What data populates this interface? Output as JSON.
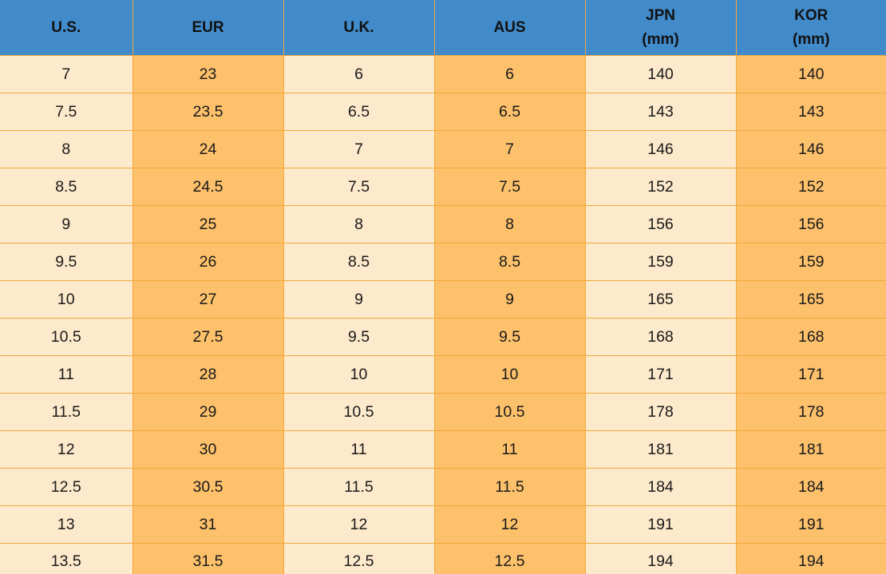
{
  "colors": {
    "header_background": "#418bcb",
    "light_cell": "#fde9cb",
    "dark_cell": "#fdc06b",
    "grid_line": "#f2a93b"
  },
  "table": {
    "headers": [
      "U.S.",
      "EUR",
      "U.K.",
      "AUS",
      "JPN\n(mm)",
      "KOR\n(mm)"
    ],
    "rows": [
      [
        "7",
        "23",
        "6",
        "6",
        "140",
        "140"
      ],
      [
        "7.5",
        "23.5",
        "6.5",
        "6.5",
        "143",
        "143"
      ],
      [
        "8",
        "24",
        "7",
        "7",
        "146",
        "146"
      ],
      [
        "8.5",
        "24.5",
        "7.5",
        "7.5",
        "152",
        "152"
      ],
      [
        "9",
        "25",
        "8",
        "8",
        "156",
        "156"
      ],
      [
        "9.5",
        "26",
        "8.5",
        "8.5",
        "159",
        "159"
      ],
      [
        "10",
        "27",
        "9",
        "9",
        "165",
        "165"
      ],
      [
        "10.5",
        "27.5",
        "9.5",
        "9.5",
        "168",
        "168"
      ],
      [
        "11",
        "28",
        "10",
        "10",
        "171",
        "171"
      ],
      [
        "11.5",
        "29",
        "10.5",
        "10.5",
        "178",
        "178"
      ],
      [
        "12",
        "30",
        "11",
        "11",
        "181",
        "181"
      ],
      [
        "12.5",
        "30.5",
        "11.5",
        "11.5",
        "184",
        "184"
      ],
      [
        "13",
        "31",
        "12",
        "12",
        "191",
        "191"
      ],
      [
        "13.5",
        "31.5",
        "12.5",
        "12.5",
        "194",
        "194"
      ]
    ]
  }
}
